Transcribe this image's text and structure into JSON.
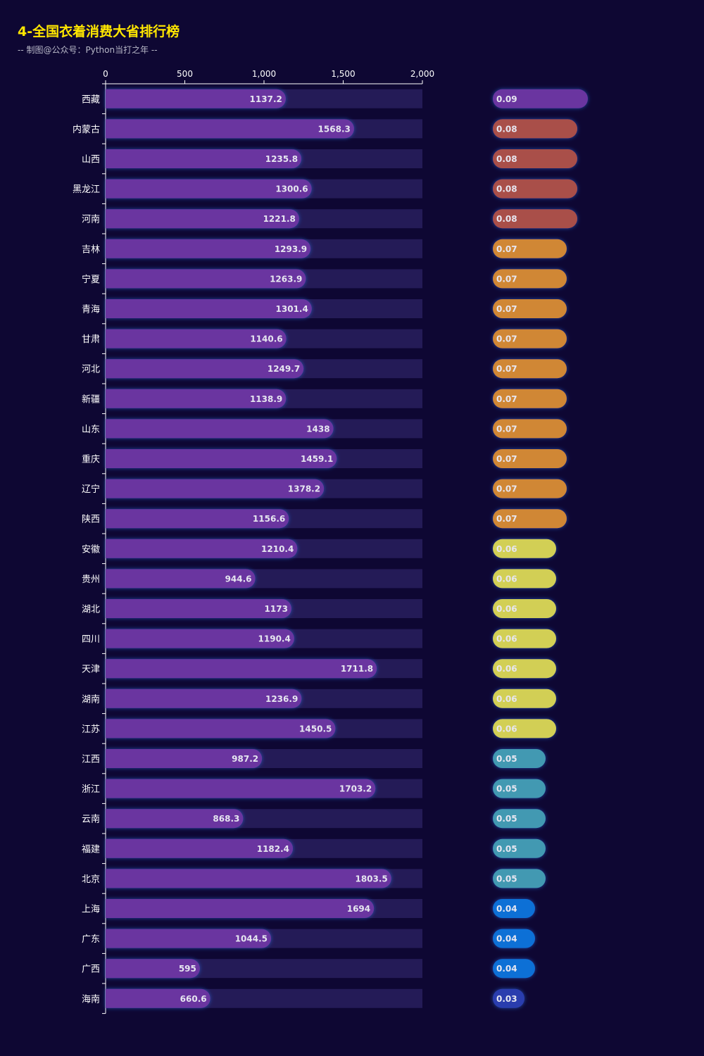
{
  "title": "4-全国衣着消费大省排行榜",
  "subtitle": "-- 制图@公众号：Python当打之年 --",
  "chart_data": [
    {
      "type": "bar",
      "orientation": "horizontal",
      "xlim": [
        0,
        2000
      ],
      "x_ticks": [
        "0",
        "500",
        "1,000",
        "1,500",
        "2,000"
      ],
      "categories": [
        "西藏",
        "内蒙古",
        "山西",
        "黑龙江",
        "河南",
        "吉林",
        "宁夏",
        "青海",
        "甘肃",
        "河北",
        "新疆",
        "山东",
        "重庆",
        "辽宁",
        "陕西",
        "安徽",
        "贵州",
        "湖北",
        "四川",
        "天津",
        "湖南",
        "江苏",
        "江西",
        "浙江",
        "云南",
        "福建",
        "北京",
        "上海",
        "广东",
        "广西",
        "海南"
      ],
      "values": [
        1137.2,
        1568.3,
        1235.8,
        1300.6,
        1221.8,
        1293.9,
        1263.9,
        1301.4,
        1140.6,
        1249.7,
        1138.9,
        1438,
        1459.1,
        1378.2,
        1156.6,
        1210.4,
        944.6,
        1173,
        1190.4,
        1711.8,
        1236.9,
        1450.5,
        987.2,
        1703.2,
        868.3,
        1182.4,
        1803.5,
        1694,
        1044.5,
        595,
        660.6
      ],
      "bar_color": "#6a35a0",
      "background_bar_color": "#241b57",
      "grid": false
    },
    {
      "type": "bar",
      "orientation": "horizontal",
      "values": [
        0.09,
        0.08,
        0.08,
        0.08,
        0.08,
        0.07,
        0.07,
        0.07,
        0.07,
        0.07,
        0.07,
        0.07,
        0.07,
        0.07,
        0.07,
        0.06,
        0.06,
        0.06,
        0.06,
        0.06,
        0.06,
        0.06,
        0.05,
        0.05,
        0.05,
        0.05,
        0.05,
        0.04,
        0.04,
        0.04,
        0.03
      ],
      "colors": {
        "0.09": "#6a35a0",
        "0.08": "#a9504a",
        "0.07": "#d08734",
        "0.06": "#d2cf55",
        "0.05": "#4399b2",
        "0.04": "#1170d6",
        "0.03": "#2a3cae"
      }
    }
  ]
}
